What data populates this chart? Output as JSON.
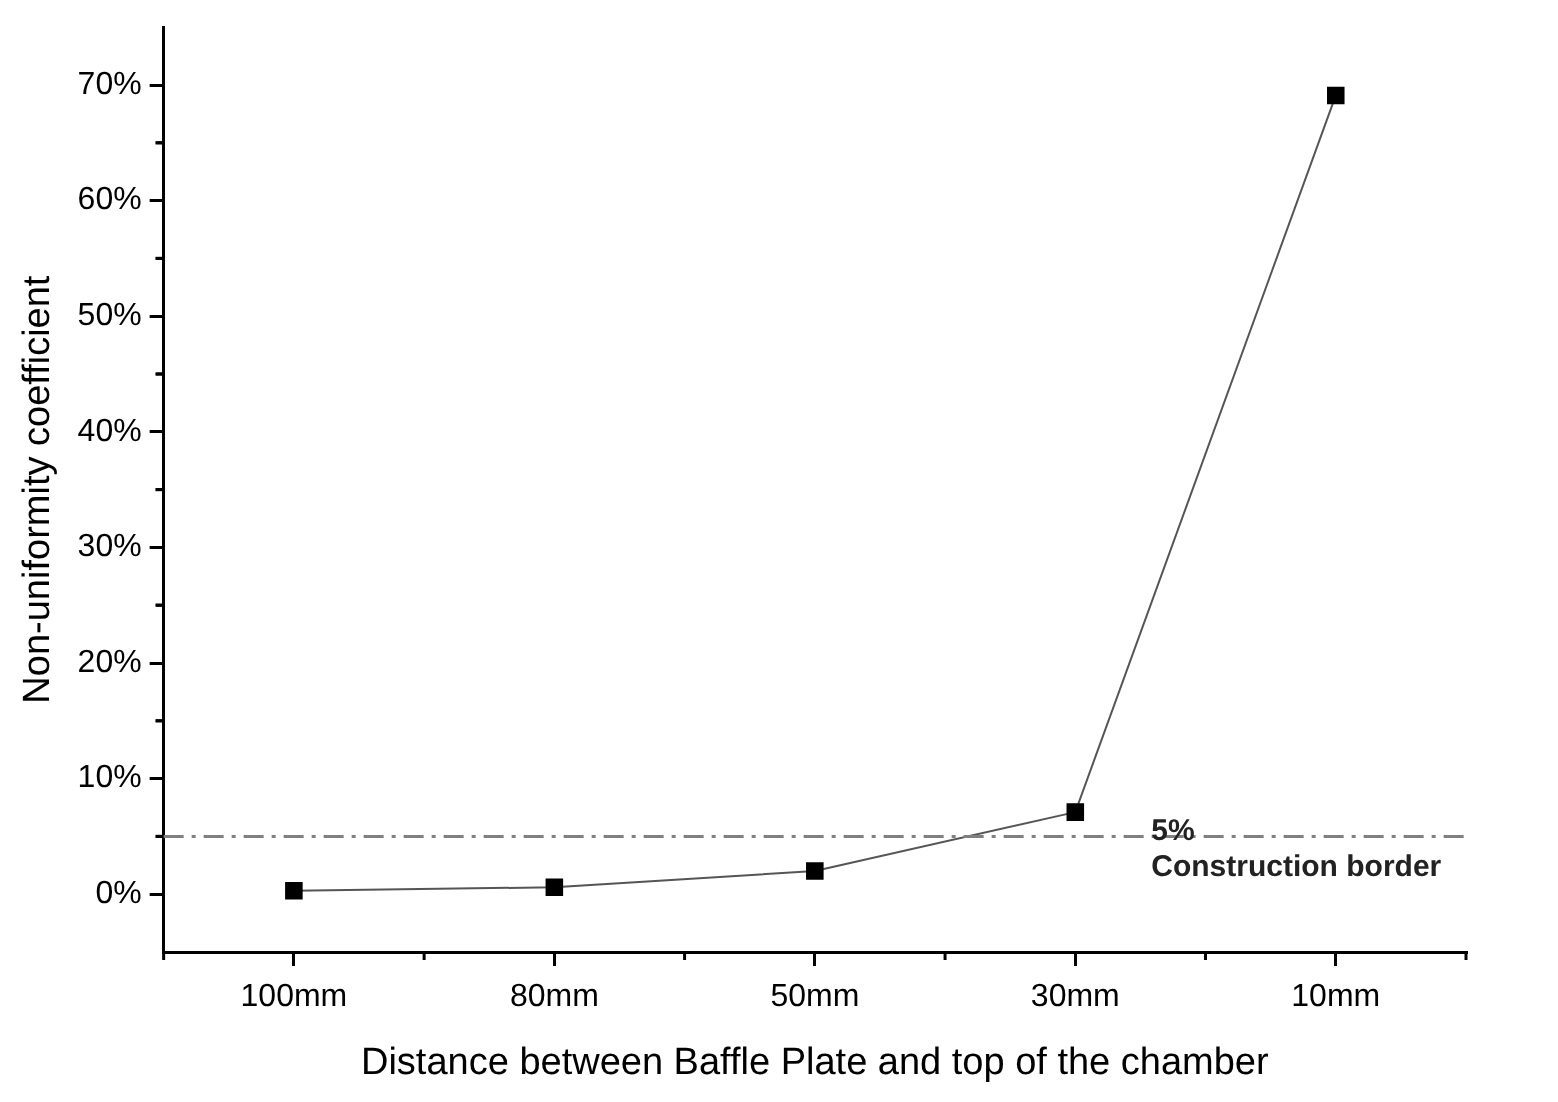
{
  "chart_data": {
    "type": "line",
    "xlabel": "Distance between Baffle Plate and top of the chamber",
    "ylabel": "Non-uniformity coefficient",
    "categories": [
      "100mm",
      "80mm",
      "50mm",
      "30mm",
      "10mm"
    ],
    "series": [
      {
        "color": "#000000",
        "values": [
          0.3,
          0.6,
          2.0,
          7.1,
          69.1
        ]
      }
    ],
    "ylim": [
      -5,
      75
    ],
    "yticks": [
      {
        "value": 0,
        "label": "0%"
      },
      {
        "value": 10,
        "label": "10%"
      },
      {
        "value": 20,
        "label": "20%"
      },
      {
        "value": 30,
        "label": "30%"
      },
      {
        "value": 40,
        "label": "40%"
      },
      {
        "value": 50,
        "label": "50%"
      },
      {
        "value": 60,
        "label": "60%"
      },
      {
        "value": 70,
        "label": "70%"
      }
    ],
    "ref_lines": [
      {
        "axis": "y",
        "value": 5,
        "label": "5%",
        "color": "#808080",
        "line_style": "dashdot"
      }
    ],
    "annotations": [
      "Construction border"
    ],
    "grid": false,
    "legend": false,
    "marker": "square",
    "line_style": "solid"
  }
}
